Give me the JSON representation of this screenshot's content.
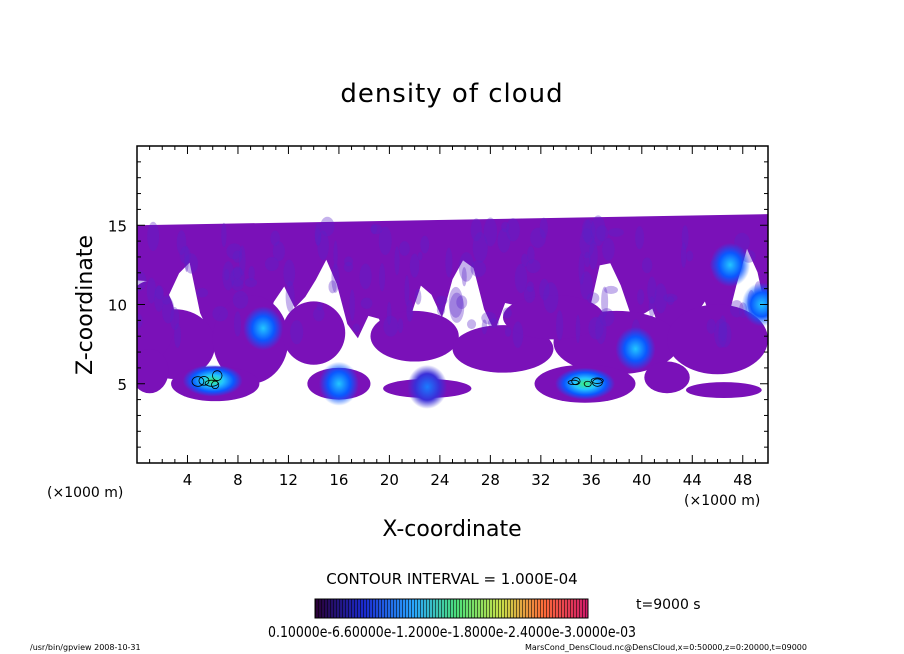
{
  "chart_data": {
    "type": "heatmap",
    "title": "density of cloud",
    "xlabel": "X-coordinate",
    "ylabel": "Z-coordinate",
    "xunit": "(×1000 m)",
    "yunit": "(×1000 m)",
    "xlim": [
      0,
      50
    ],
    "ylim": [
      0,
      20
    ],
    "xticks": [
      4,
      8,
      12,
      16,
      20,
      24,
      28,
      32,
      36,
      40,
      44,
      48
    ],
    "yticks": [
      5,
      10,
      15
    ],
    "contour_interval": "CONTOUR INTERVAL = 1.000E-04",
    "time_label": "t=9000 s",
    "colorbar_label": "0.10000e-6.60000e-1.2000e-1.8000e-2.4000e-3.0000e-03",
    "cloud_top": 15,
    "cloud_base": 4,
    "cores": [
      {
        "x": 6.0,
        "z": 5.2,
        "peak": "high"
      },
      {
        "x": 10.0,
        "z": 8.5,
        "peak": "medium"
      },
      {
        "x": 16.0,
        "z": 5.0,
        "peak": "medium"
      },
      {
        "x": 23.0,
        "z": 4.8,
        "peak": "low"
      },
      {
        "x": 35.5,
        "z": 5.0,
        "peak": "high"
      },
      {
        "x": 39.5,
        "z": 7.2,
        "peak": "medium"
      },
      {
        "x": 47.0,
        "z": 12.5,
        "peak": "medium"
      },
      {
        "x": 49.5,
        "z": 10.0,
        "peak": "medium"
      }
    ]
  },
  "footer": {
    "left": "/usr/bin/gpview   2008-10-31",
    "right": "MarsCond_DensCloud.nc@DensCloud,x=0:50000,z=0:20000,t=09000"
  },
  "colors": {
    "cloud_base": "#7a11b8",
    "core_blue": "#0a58ff",
    "core_cyan": "#23c6ff",
    "core_green": "#3cf07a",
    "frame": "#000000"
  }
}
